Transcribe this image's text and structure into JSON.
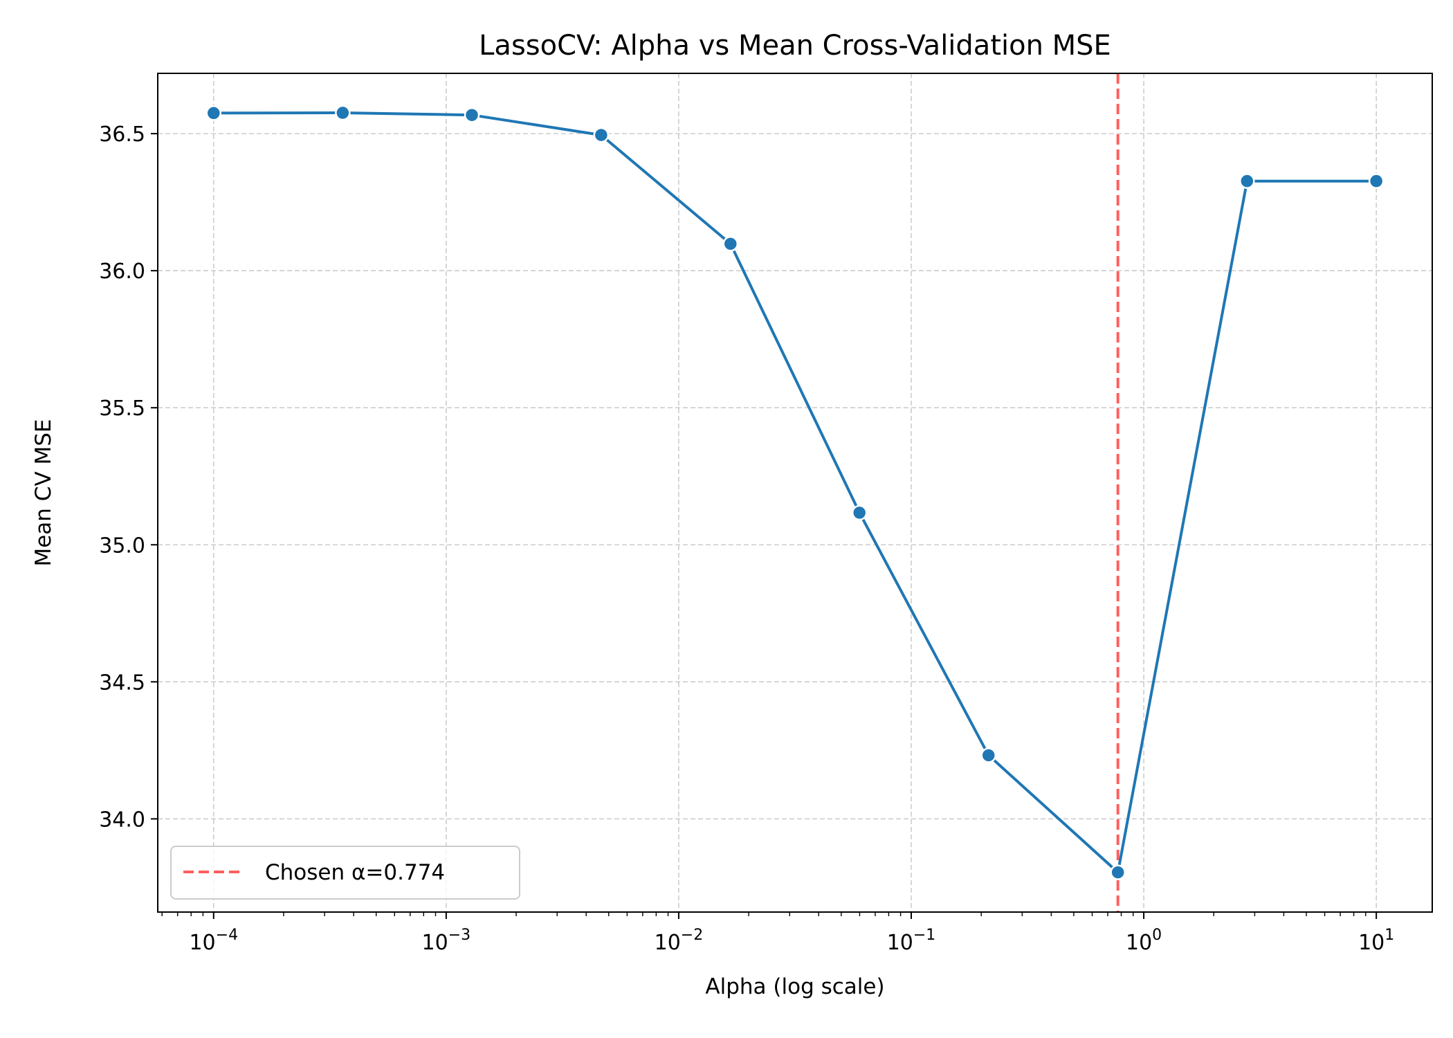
{
  "chart_data": {
    "type": "line",
    "title": "LassoCV: Alpha vs Mean Cross-Validation MSE",
    "xlabel": "Alpha (log scale)",
    "ylabel": "Mean CV MSE",
    "xscale": "log",
    "grid": true,
    "legend_position": "lower-left",
    "xlim": [
      5.75e-05,
      17.4
    ],
    "ylim": [
      33.66,
      36.72
    ],
    "x_ticks": [
      {
        "value": 0.0001,
        "base": "10",
        "exp": "−4"
      },
      {
        "value": 0.001,
        "base": "10",
        "exp": "−3"
      },
      {
        "value": 0.01,
        "base": "10",
        "exp": "−2"
      },
      {
        "value": 0.1,
        "base": "10",
        "exp": "−1"
      },
      {
        "value": 1,
        "base": "10",
        "exp": "0"
      },
      {
        "value": 10,
        "base": "10",
        "exp": "1"
      }
    ],
    "y_ticks": [
      {
        "value": 34.0,
        "label": "34.0"
      },
      {
        "value": 34.5,
        "label": "34.5"
      },
      {
        "value": 35.0,
        "label": "35.0"
      },
      {
        "value": 35.5,
        "label": "35.5"
      },
      {
        "value": 36.0,
        "label": "36.0"
      },
      {
        "value": 36.5,
        "label": "36.5"
      }
    ],
    "series": [
      {
        "color": "#1f77b4",
        "x": [
          0.0001,
          0.000359,
          0.00129,
          0.00464,
          0.0167,
          0.0599,
          0.215,
          0.774,
          2.78,
          10
        ],
        "y": [
          36.575,
          36.576,
          36.568,
          36.495,
          36.098,
          35.117,
          34.232,
          33.805,
          36.327,
          36.327
        ]
      }
    ],
    "annotations": [
      {
        "type": "vline",
        "x": 0.774,
        "color": "#ff4d4d",
        "style": "dashed",
        "label": "Chosen α=0.774"
      }
    ],
    "legend": [
      {
        "label": "Chosen α=0.774",
        "color": "#ff4d4d",
        "style": "dashed"
      }
    ]
  }
}
